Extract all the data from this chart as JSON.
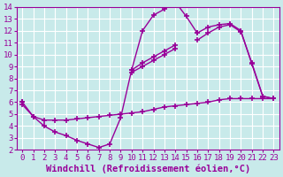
{
  "background_color": "#c8eaea",
  "grid_color": "#ffffff",
  "line_color": "#990099",
  "marker": "+",
  "marker_size": 4,
  "marker_linewidth": 1.2,
  "xlabel": "Windchill (Refroidissement éolien,°C)",
  "xlabel_fontsize": 7.5,
  "xlim": [
    -0.5,
    23.5
  ],
  "ylim": [
    2,
    14
  ],
  "xticks": [
    0,
    1,
    2,
    3,
    4,
    5,
    6,
    7,
    8,
    9,
    10,
    11,
    12,
    13,
    14,
    15,
    16,
    17,
    18,
    19,
    20,
    21,
    22,
    23
  ],
  "yticks": [
    2,
    3,
    4,
    5,
    6,
    7,
    8,
    9,
    10,
    11,
    12,
    13,
    14
  ],
  "tick_fontsize": 6.5,
  "series": [
    {
      "x": [
        0,
        1,
        2,
        3,
        4,
        5,
        6,
        7,
        8,
        9,
        10,
        11,
        12,
        13,
        14,
        15,
        16,
        17,
        18,
        19,
        20,
        21,
        22,
        23
      ],
      "y": [
        6.0,
        4.8,
        4.0,
        3.5,
        3.2,
        2.8,
        2.5,
        2.2,
        2.5,
        4.7,
        8.7,
        12.0,
        13.3,
        13.8,
        14.4,
        13.2,
        11.8,
        null,
        null,
        null,
        null,
        null,
        null,
        null
      ]
    },
    {
      "x": [
        0,
        1,
        2,
        3,
        4,
        5,
        6,
        7,
        8,
        9,
        10,
        11,
        12,
        13,
        14,
        15,
        16,
        17,
        18,
        19,
        20,
        21,
        22,
        23
      ],
      "y": [
        6.0,
        null,
        null,
        null,
        null,
        null,
        null,
        null,
        null,
        null,
        8.7,
        9.3,
        9.8,
        10.3,
        10.8,
        null,
        11.8,
        12.3,
        12.5,
        12.6,
        12.0,
        9.2,
        6.5,
        6.3
      ]
    },
    {
      "x": [
        0,
        1,
        2,
        3,
        4,
        5,
        6,
        7,
        8,
        9,
        10,
        11,
        12,
        13,
        14,
        15,
        16,
        17,
        18,
        19,
        20,
        21,
        22,
        23
      ],
      "y": [
        6.0,
        null,
        null,
        null,
        null,
        null,
        null,
        null,
        null,
        null,
        8.5,
        9.0,
        9.5,
        10.0,
        10.5,
        null,
        11.2,
        11.8,
        12.3,
        12.5,
        11.9,
        9.3,
        6.5,
        6.3
      ]
    },
    {
      "x": [
        0,
        1,
        2,
        3,
        4,
        5,
        6,
        7,
        8,
        9,
        10,
        11,
        12,
        13,
        14,
        15,
        16,
        17,
        18,
        19,
        20,
        21,
        22,
        23
      ],
      "y": [
        5.8,
        4.8,
        4.5,
        4.5,
        4.5,
        4.6,
        4.7,
        4.8,
        4.9,
        5.0,
        5.1,
        5.2,
        5.4,
        5.6,
        5.7,
        5.8,
        5.9,
        6.0,
        6.2,
        6.3,
        6.3,
        6.3,
        6.3,
        6.3
      ]
    }
  ]
}
